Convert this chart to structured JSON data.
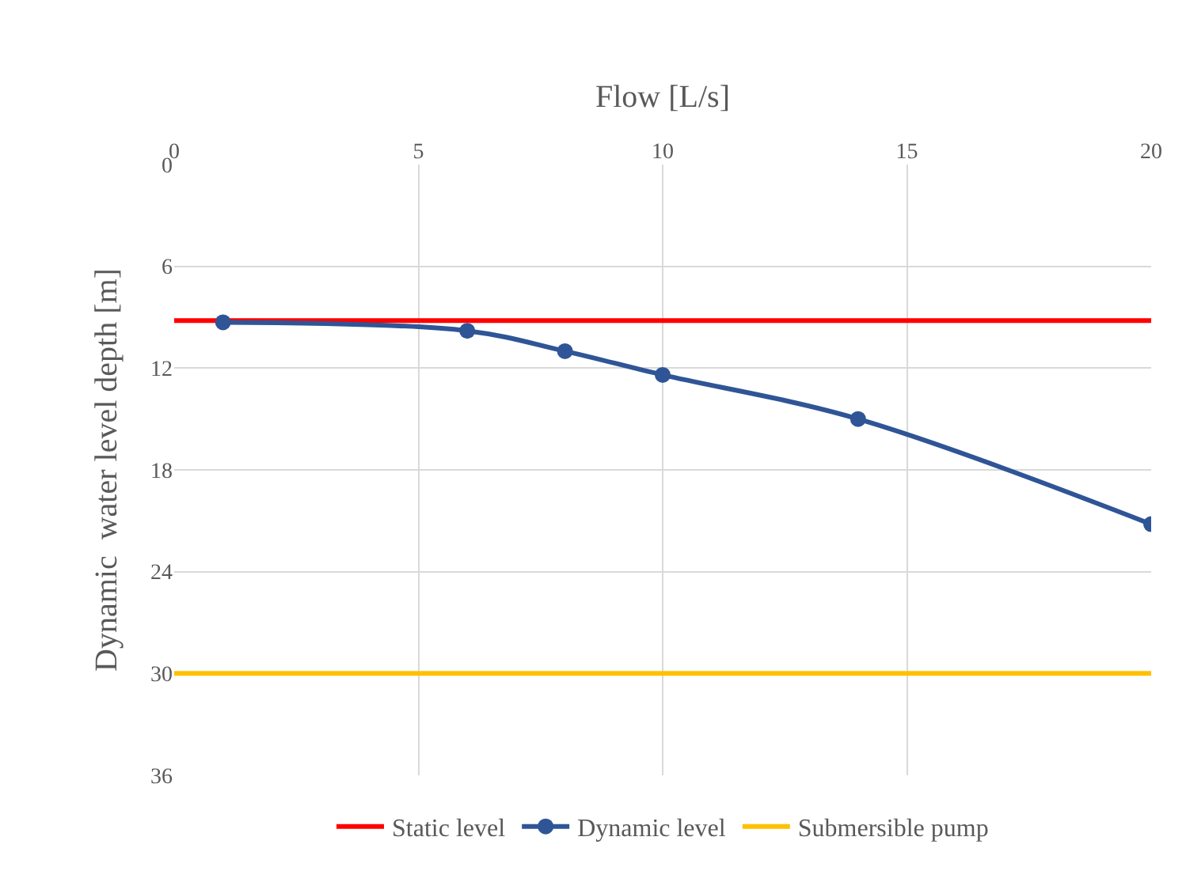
{
  "chart_data": {
    "type": "line",
    "xlabel": "Flow [L/s]",
    "ylabel": "Dynamic  water level depth [m]",
    "xlim": [
      0,
      20
    ],
    "xticks": [
      0,
      5,
      10,
      15,
      20
    ],
    "ylim": [
      36,
      0
    ],
    "yticks": [
      0,
      6,
      12,
      18,
      24,
      30,
      36
    ],
    "grid": true,
    "legend": "bottom",
    "line_style": "solid",
    "series": [
      {
        "name": "Static level",
        "color": "#ff0000",
        "x": [
          0,
          20
        ],
        "values": [
          9.2,
          9.2
        ],
        "marker": "none"
      },
      {
        "name": "Dynamic level",
        "color": "#2f5597",
        "x": [
          1,
          6,
          8,
          10,
          14,
          20
        ],
        "values": [
          9.3,
          9.8,
          11.0,
          12.4,
          15.0,
          21.2
        ],
        "marker": "circle"
      },
      {
        "name": "Submersible pump",
        "color": "#ffc000",
        "x": [
          0,
          20
        ],
        "values": [
          30,
          30
        ],
        "marker": "none"
      }
    ]
  }
}
